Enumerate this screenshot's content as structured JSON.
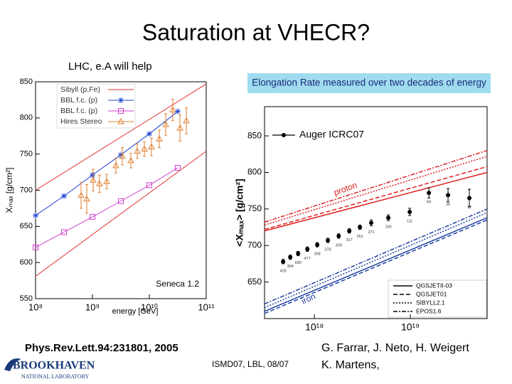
{
  "slide": {
    "title": "Saturation at VHECR?",
    "subtitle": "LHC, e.A will help",
    "citation": "Phys.Rev.Lett.94:231801, 2005",
    "venue": "ISMD07, LBL, 08/07",
    "authors": [
      "G. Farrar, J. Neto, H. Weigert",
      "K. Martens,"
    ],
    "logo": [
      "BROOKHAVEN",
      "NATIONAL LABORATORY"
    ]
  },
  "chart_data": [
    {
      "type": "line",
      "x_label": "energy [GeV]",
      "y_label": "Xₘₐₓ [g/cm²]",
      "annotation": "Seneca 1.2",
      "xscale": "log",
      "legend": "upper left",
      "xlim": [
        100000000,
        100000000000
      ],
      "ylim": [
        550,
        850
      ],
      "xticks": [
        {
          "value": 100000000,
          "label": "10⁸"
        },
        {
          "value": 1000000000,
          "label": "10⁹"
        },
        {
          "value": 10000000000,
          "label": "10¹⁰"
        },
        {
          "value": 100000000000,
          "label": "10¹¹"
        }
      ],
      "yticks": [
        550,
        600,
        650,
        700,
        750,
        800,
        850
      ],
      "series": [
        {
          "name": "Sibyll (p,Fe)",
          "color": "#e03030",
          "marker": "none",
          "connect": true,
          "x": [
            100000000,
            100000000000
          ],
          "lines": [
            [
              700,
              847
            ],
            [
              581,
              754
            ]
          ]
        },
        {
          "name": "BBL f.c. (p)",
          "color": "#2040d0",
          "marker": "asterisk",
          "connect": true,
          "x": [
            100000000,
            316000000,
            1000000000,
            3160000000,
            10000000000,
            31600000000
          ],
          "values": [
            665,
            692,
            721,
            749,
            778,
            809
          ]
        },
        {
          "name": "BBL f.c. (p)",
          "color": "#d040d0",
          "marker": "square",
          "connect": true,
          "x": [
            100000000,
            316000000,
            1000000000,
            3160000000,
            10000000000,
            31600000000
          ],
          "values": [
            621,
            642,
            663,
            685,
            707,
            731
          ]
        },
        {
          "name": "Hires Stereo",
          "color": "#e08030",
          "marker": "triangle",
          "connect": false,
          "x": [
            631000000,
            794000000,
            1030000000,
            1330000000,
            1780000000,
            2580000000,
            3350000000,
            4730000000,
            6130000000,
            8180000000,
            10900000000,
            15000000000,
            19400000000,
            25800000000,
            34500000000,
            44700000000
          ],
          "values": [
            693,
            688,
            714,
            709,
            712,
            734,
            747,
            741,
            754,
            757,
            760,
            771,
            791,
            811,
            786,
            796
          ],
          "errors": [
            18,
            20,
            15,
            12,
            10,
            10,
            12,
            10,
            10,
            10,
            12,
            12,
            15,
            15,
            18,
            18
          ]
        }
      ]
    },
    {
      "type": "line",
      "banner": "Elongation Rate measured over two decades of energy",
      "y_label": "<Xₘₐₓ> [g/cm²]",
      "xscale": "log",
      "legend": "upper left",
      "xlim": [
        302000000000000000,
        63100000000000000000
      ],
      "ylim": [
        600,
        890
      ],
      "xticks": [
        {
          "value": 1000000000000000000,
          "label": "10¹⁸"
        },
        {
          "value": 10000000000000000000,
          "label": "10¹⁹"
        }
      ],
      "yticks": [
        650,
        700,
        750,
        800,
        850
      ],
      "annotations": [
        "proton",
        "iron"
      ],
      "proton_color": "#e02020",
      "iron_color": "#2040a0",
      "model_x": [
        302000000000000000,
        63100000000000000000
      ],
      "models": [
        {
          "name": "QGSJETII-03",
          "dash": "solid",
          "proton": [
            720,
            800
          ],
          "iron": [
            610,
            738
          ]
        },
        {
          "name": "QGSJET01",
          "dash": "dashed",
          "proton": [
            722,
            808
          ],
          "iron": [
            607,
            735
          ]
        },
        {
          "name": "SIBYLL2.1",
          "dash": "dotted",
          "proton": [
            728,
            822
          ],
          "iron": [
            615,
            745
          ]
        },
        {
          "name": "EPOS1.6",
          "dash": "dashdot",
          "proton": [
            732,
            830
          ],
          "iron": [
            620,
            750
          ]
        }
      ],
      "series": [
        {
          "name": "Auger ICRC07",
          "color": "#000000",
          "marker": "circle",
          "connect": false,
          "x": [
            472000000000000000,
            560000000000000000,
            676000000000000000,
            844000000000000000,
            1070000000000000000,
            1380000000000000000,
            1790000000000000000,
            2310000000000000000,
            2980000000000000000,
            3910000000000000000,
            5890000000000000000,
            9840000000000000000,
            15600000000000000000,
            24700000000000000000,
            41200000000000000000
          ],
          "values": [
            678,
            684,
            689,
            695,
            701,
            707,
            713,
            720,
            725,
            731,
            738,
            746,
            772,
            769,
            765
          ],
          "errors": [
            3,
            3,
            3,
            3,
            3,
            3,
            3,
            3,
            3,
            4,
            4,
            5,
            7,
            9,
            12
          ],
          "counts": [
            426,
            394,
            690,
            477,
            368,
            378,
            328,
            317,
            261,
            271,
            166,
            111,
            69,
            25,
            12
          ]
        }
      ]
    }
  ]
}
